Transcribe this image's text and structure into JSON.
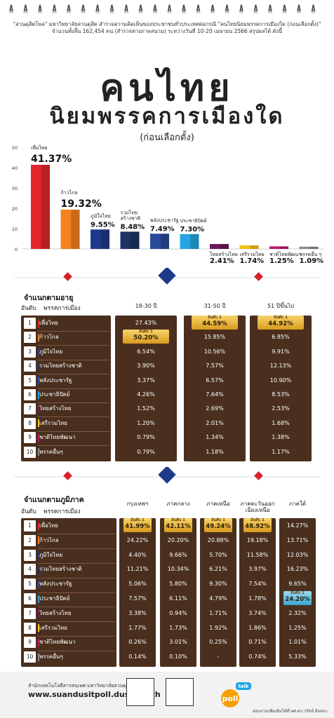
{
  "header": {
    "intro_line1": "\"สวนดุสิตโพล\" มหาวิทยาลัยสวนดุสิต สำรวจความคิดเห็นของประชาชนทั่วประเทศต่อกรณี \"คนไทยนิยมพรรคการเมืองใด (ก่อนเลือกตั้ง)\"",
    "intro_line2": "จำนวนทั้งสิ้น 162,454 คน (สำรวจทางภาคสนาม) ระหว่างวันที่ 10-20 เมษายน 2566 สรุปผลได้ ดังนี้",
    "title_line1": "คนไทย",
    "title_line2": "นิยมพรรคการเมืองใด",
    "title_line3": "(ก่อนเลือกตั้ง)"
  },
  "chart_data": {
    "type": "bar",
    "categories": [
      "เพื่อไทย",
      "ก้าวไกล",
      "ภูมิใจไทย",
      "รวมไทยสร้างชาติ",
      "พลังประชารัฐ",
      "ประชาธิปัตย์",
      "ไทยสร้างไทย",
      "เสรีรวมไทย",
      "ชาติไทยพัฒนา",
      "พรรคอื่น ๆ"
    ],
    "values": [
      41.37,
      19.32,
      9.55,
      8.48,
      7.49,
      7.3,
      2.41,
      1.74,
      1.25,
      1.09
    ],
    "value_labels": [
      "41.37%",
      "19.32%",
      "9.55%",
      "8.48%",
      "7.49%",
      "7.30%",
      "2.41%",
      "1.74%",
      "1.25%",
      "1.09%"
    ],
    "colors": [
      "#e0262a",
      "#f58220",
      "#1f3a8a",
      "#1e3264",
      "#2a4a9a",
      "#25a6e0",
      "#6a1a5c",
      "#f3c21a",
      "#c0186b",
      "#8a8a8a"
    ],
    "yticks": [
      "0",
      "10",
      "20",
      "30",
      "40",
      "50"
    ],
    "ylim": [
      0,
      50
    ],
    "grid": false
  },
  "age": {
    "title": "จำแนกตามอายุ",
    "col_rank": "อันดับ",
    "col_party": "พรรคการเมือง",
    "groups": [
      "18-30 ปี",
      "31-50 ปี",
      "51 ปีขึ้นไป"
    ],
    "rank1_label": "อันดับ 1",
    "rows": [
      {
        "rank": "1",
        "party": "เพื่อไทย",
        "vals": [
          "27.43%",
          "44.59%",
          "44.92%"
        ],
        "hl": [
          false,
          true,
          true
        ]
      },
      {
        "rank": "2",
        "party": "ก้าวไกล",
        "vals": [
          "50.20%",
          "15.85%",
          "6.85%"
        ],
        "hl": [
          true,
          false,
          false
        ]
      },
      {
        "rank": "3",
        "party": "ภูมิใจไทย",
        "vals": [
          "6.54%",
          "10.56%",
          "9.91%"
        ],
        "hl": [
          false,
          false,
          false
        ]
      },
      {
        "rank": "4",
        "party": "รวมไทยสร้างชาติ",
        "vals": [
          "3.90%",
          "7.57%",
          "12.13%"
        ],
        "hl": [
          false,
          false,
          false
        ]
      },
      {
        "rank": "5",
        "party": "พลังประชารัฐ",
        "vals": [
          "3.37%",
          "6.57%",
          "10.90%"
        ],
        "hl": [
          false,
          false,
          false
        ]
      },
      {
        "rank": "6",
        "party": "ประชาธิปัตย์",
        "vals": [
          "4.26%",
          "7.64%",
          "8.53%"
        ],
        "hl": [
          false,
          false,
          false
        ]
      },
      {
        "rank": "7",
        "party": "ไทยสร้างไทย",
        "vals": [
          "1.52%",
          "2.69%",
          "2.53%"
        ],
        "hl": [
          false,
          false,
          false
        ]
      },
      {
        "rank": "8",
        "party": "เสรีรวมไทย",
        "vals": [
          "1.20%",
          "2.01%",
          "1.68%"
        ],
        "hl": [
          false,
          false,
          false
        ]
      },
      {
        "rank": "9",
        "party": "ชาติไทยพัฒนา",
        "vals": [
          "0.79%",
          "1.34%",
          "1.38%"
        ],
        "hl": [
          false,
          false,
          false
        ]
      },
      {
        "rank": "10",
        "party": "พรรคอื่นๆ",
        "vals": [
          "0.79%",
          "1.18%",
          "1.17%"
        ],
        "hl": [
          false,
          false,
          false
        ]
      }
    ]
  },
  "region": {
    "title": "จำแนกตามภูมิภาค",
    "col_rank": "อันดับ",
    "col_party": "พรรคการเมือง",
    "groups": [
      "กรุงเทพฯ",
      "ภาคกลาง",
      "ภาคเหนือ",
      "ภาคตะวันออก เฉียงเหนือ",
      "ภาคใต้"
    ],
    "rank1_label": "อันดับ 1",
    "rows": [
      {
        "rank": "1",
        "party": "เพื่อไทย",
        "vals": [
          "41.99%",
          "42.11%",
          "49.24%",
          "48.92%",
          "14.27%"
        ],
        "hl": [
          true,
          true,
          true,
          true,
          false
        ]
      },
      {
        "rank": "2",
        "party": "ก้าวไกล",
        "vals": [
          "24.22%",
          "20.20%",
          "20.88%",
          "19.18%",
          "13.71%"
        ],
        "hl": [
          false,
          false,
          false,
          false,
          false
        ]
      },
      {
        "rank": "3",
        "party": "ภูมิใจไทย",
        "vals": [
          "4.40%",
          "9.66%",
          "5.70%",
          "11.58%",
          "12.03%"
        ],
        "hl": [
          false,
          false,
          false,
          false,
          false
        ]
      },
      {
        "rank": "4",
        "party": "รวมไทยสร้างชาติ",
        "vals": [
          "11.21%",
          "10.34%",
          "6.21%",
          "3.97%",
          "16.23%"
        ],
        "hl": [
          false,
          false,
          false,
          false,
          false
        ]
      },
      {
        "rank": "5",
        "party": "พลังประชารัฐ",
        "vals": [
          "5.06%",
          "5.80%",
          "9.30%",
          "7.54%",
          "9.65%"
        ],
        "hl": [
          false,
          false,
          false,
          false,
          false
        ]
      },
      {
        "rank": "6",
        "party": "ประชาธิปัตย์",
        "vals": [
          "7.57%",
          "6.11%",
          "4.79%",
          "1.78%",
          "24.20%"
        ],
        "hl": [
          false,
          false,
          false,
          false,
          true
        ]
      },
      {
        "rank": "7",
        "party": "ไทยสร้างไทย",
        "vals": [
          "3.38%",
          "0.94%",
          "1.71%",
          "3.74%",
          "2.32%"
        ],
        "hl": [
          false,
          false,
          false,
          false,
          false
        ]
      },
      {
        "rank": "8",
        "party": "เสรีรวมไทย",
        "vals": [
          "1.77%",
          "1.73%",
          "1.92%",
          "1.86%",
          "1.25%"
        ],
        "hl": [
          false,
          false,
          false,
          false,
          false
        ]
      },
      {
        "rank": "9",
        "party": "ชาติไทยพัฒนา",
        "vals": [
          "0.26%",
          "3.01%",
          "0.25%",
          "0.71%",
          "1.01%"
        ],
        "hl": [
          false,
          false,
          false,
          false,
          false
        ]
      },
      {
        "rank": "10",
        "party": "พรรคอื่นๆ",
        "vals": [
          "0.14%",
          "0.10%",
          "-",
          "0.74%",
          "5.33%"
        ],
        "hl": [
          false,
          false,
          false,
          false,
          false
        ]
      }
    ]
  },
  "footer": {
    "org_line": "สำนักเทคโนโลยีสารสนเทศ มหาวิทยาลัยสวนดุสิต",
    "url": "www.suandusitpoll.dusit.ac.th",
    "logo_word": "poll",
    "logo_badge": "talk",
    "right_line": "สอบถามเพิ่มเติมได้ที่ ผศ.ดร.วรัทย์ อินทระ"
  },
  "colors": {
    "band": "#4a2f1e",
    "highlight_gold": "#e7b33a",
    "highlight_blue": "#3aa6d2",
    "diamond_red": "#d6232a",
    "diamond_blue": "#1f3a8a"
  }
}
